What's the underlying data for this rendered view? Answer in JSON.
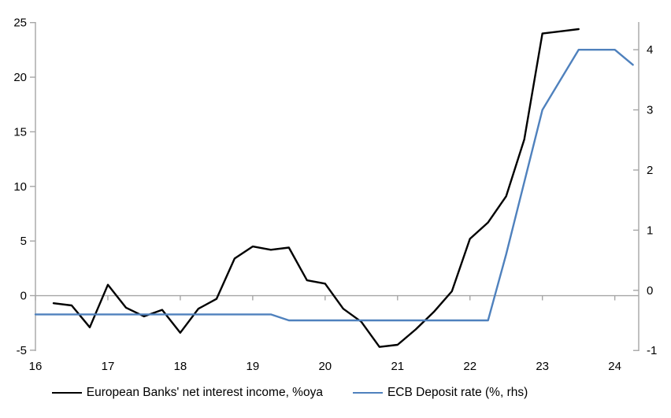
{
  "chart_data": {
    "type": "line",
    "title": "",
    "xlabel": "",
    "ylabel_left": "",
    "ylabel_right": "",
    "grid": "zero-line-only",
    "legend_position": "bottom-center",
    "x_axis": {
      "tick_labels": [
        "16",
        "17",
        "18",
        "19",
        "20",
        "21",
        "22",
        "23",
        "24"
      ],
      "tick_values": [
        16,
        17,
        18,
        19,
        20,
        21,
        22,
        23,
        24
      ],
      "min": 16,
      "max": 24.33
    },
    "left_axis": {
      "tick_labels": [
        "-5",
        "0",
        "5",
        "10",
        "15",
        "20",
        "25"
      ],
      "tick_values": [
        -5,
        0,
        5,
        10,
        15,
        20,
        25
      ],
      "min": -5.08,
      "max": 25.05
    },
    "right_axis": {
      "tick_labels": [
        "-1",
        "0",
        "1",
        "2",
        "3",
        "4"
      ],
      "tick_values": [
        -1,
        0,
        1,
        2,
        3,
        4
      ],
      "min": -1.01,
      "max": 4.46
    },
    "series": [
      {
        "name": "European Banks' net interest income, %oya",
        "axis": "left",
        "color": "#000000",
        "x": [
          16.25,
          16.5,
          16.75,
          17.0,
          17.25,
          17.5,
          17.75,
          18.0,
          18.25,
          18.5,
          18.75,
          19.0,
          19.25,
          19.5,
          19.75,
          20.0,
          20.25,
          20.5,
          20.75,
          21.0,
          21.25,
          21.5,
          21.75,
          22.0,
          22.25,
          22.5,
          22.75,
          23.0,
          23.25,
          23.5
        ],
        "values": [
          -0.7,
          -0.9,
          -2.9,
          1.0,
          -1.1,
          -1.9,
          -1.3,
          -3.4,
          -1.2,
          -0.3,
          3.4,
          4.5,
          4.2,
          4.4,
          1.4,
          1.1,
          -1.2,
          -2.4,
          -4.7,
          -4.5,
          -3.1,
          -1.5,
          0.4,
          5.2,
          6.7,
          9.1,
          14.3,
          24.0,
          24.2,
          24.4
        ]
      },
      {
        "name": "ECB Deposit rate (%, rhs)",
        "axis": "right",
        "color": "#4f81bd",
        "x": [
          16.0,
          19.25,
          19.5,
          22.25,
          22.5,
          22.75,
          23.0,
          23.25,
          23.5,
          23.75,
          24.0,
          24.25
        ],
        "values": [
          -0.4,
          -0.4,
          -0.5,
          -0.5,
          0.6,
          1.8,
          3.0,
          3.5,
          4.0,
          4.0,
          4.0,
          3.75
        ]
      }
    ]
  },
  "colors": {
    "series1": "#000000",
    "series2": "#4f81bd",
    "axis": "#a6a6a6",
    "text": "#000000",
    "background": "#ffffff"
  }
}
